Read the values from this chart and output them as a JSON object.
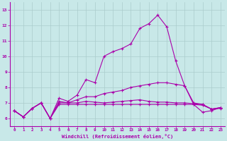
{
  "bg_color": "#c8e8e8",
  "grid_color": "#aacccc",
  "line_color": "#aa00aa",
  "marker": "+",
  "xlabel": "Windchill (Refroidissement éolien,°C)",
  "xlim": [
    -0.5,
    23.5
  ],
  "ylim": [
    5.5,
    13.5
  ],
  "yticks": [
    6,
    7,
    8,
    9,
    10,
    11,
    12,
    13
  ],
  "xticks": [
    0,
    1,
    2,
    3,
    4,
    5,
    6,
    7,
    8,
    9,
    10,
    11,
    12,
    13,
    14,
    15,
    16,
    17,
    18,
    19,
    20,
    21,
    22,
    23
  ],
  "series": [
    [
      6.5,
      6.1,
      6.65,
      7.0,
      6.0,
      7.3,
      7.1,
      7.5,
      8.5,
      8.3,
      10.0,
      10.3,
      10.5,
      10.8,
      11.8,
      12.1,
      12.65,
      11.9,
      9.7,
      8.1,
      6.9,
      6.4,
      6.5,
      6.7
    ],
    [
      6.5,
      6.1,
      6.65,
      7.0,
      6.0,
      7.0,
      7.0,
      7.2,
      7.4,
      7.4,
      7.6,
      7.7,
      7.8,
      8.0,
      8.1,
      8.2,
      8.3,
      8.3,
      8.2,
      8.1,
      7.0,
      6.9,
      6.6,
      6.7
    ],
    [
      6.5,
      6.1,
      6.65,
      7.0,
      6.0,
      7.1,
      7.0,
      7.0,
      7.1,
      7.05,
      7.0,
      7.05,
      7.1,
      7.15,
      7.2,
      7.1,
      7.05,
      7.05,
      7.0,
      7.0,
      6.95,
      6.9,
      6.6,
      6.7
    ],
    [
      6.5,
      6.1,
      6.65,
      7.0,
      6.0,
      6.9,
      6.9,
      6.9,
      6.9,
      6.9,
      6.9,
      6.9,
      6.9,
      6.9,
      6.9,
      6.9,
      6.9,
      6.9,
      6.9,
      6.9,
      6.9,
      6.85,
      6.6,
      6.65
    ]
  ]
}
